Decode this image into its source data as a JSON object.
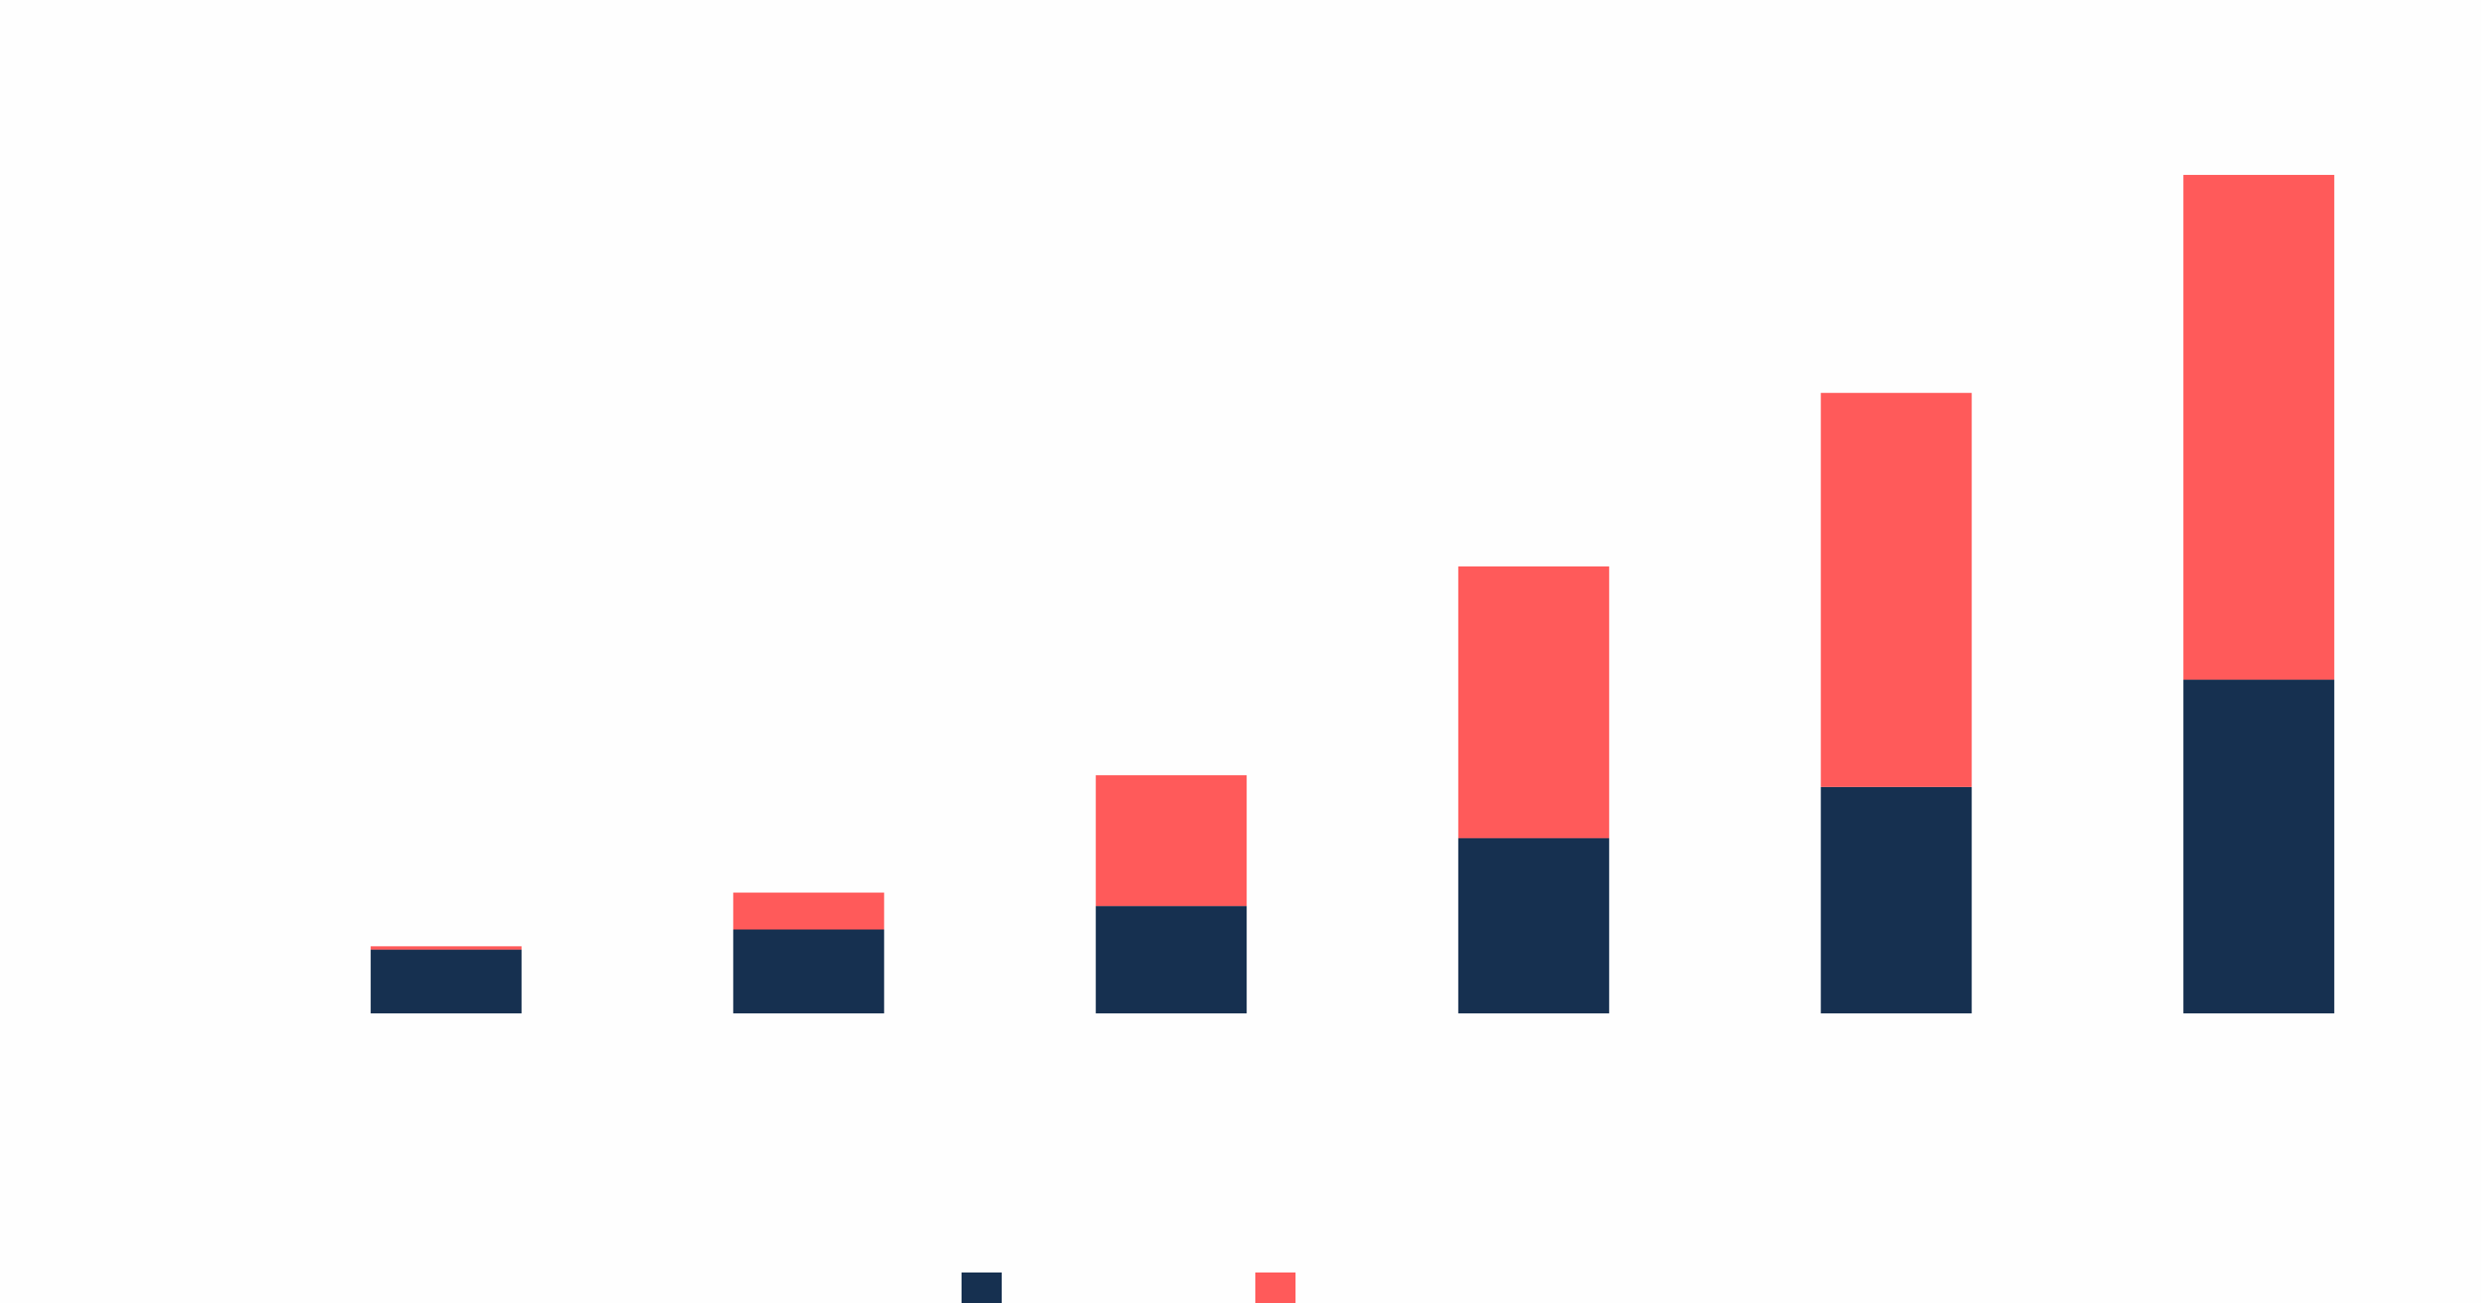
{
  "chart_data": {
    "type": "bar",
    "stacked": true,
    "title": "",
    "xlabel": "",
    "ylabel": "",
    "categories": [
      "",
      "",
      "",
      "",
      "",
      ""
    ],
    "ylim": [
      0,
      100
    ],
    "grid": false,
    "legend_position": "bottom-center",
    "series": [
      {
        "color": "#163050",
        "values": [
          7.6,
          10.0,
          12.8,
          20.9,
          27.0,
          39.8
        ]
      },
      {
        "color": "#ff5a5a",
        "values": [
          0.4,
          4.4,
          15.6,
          32.4,
          47.0,
          60.2
        ]
      }
    ]
  }
}
